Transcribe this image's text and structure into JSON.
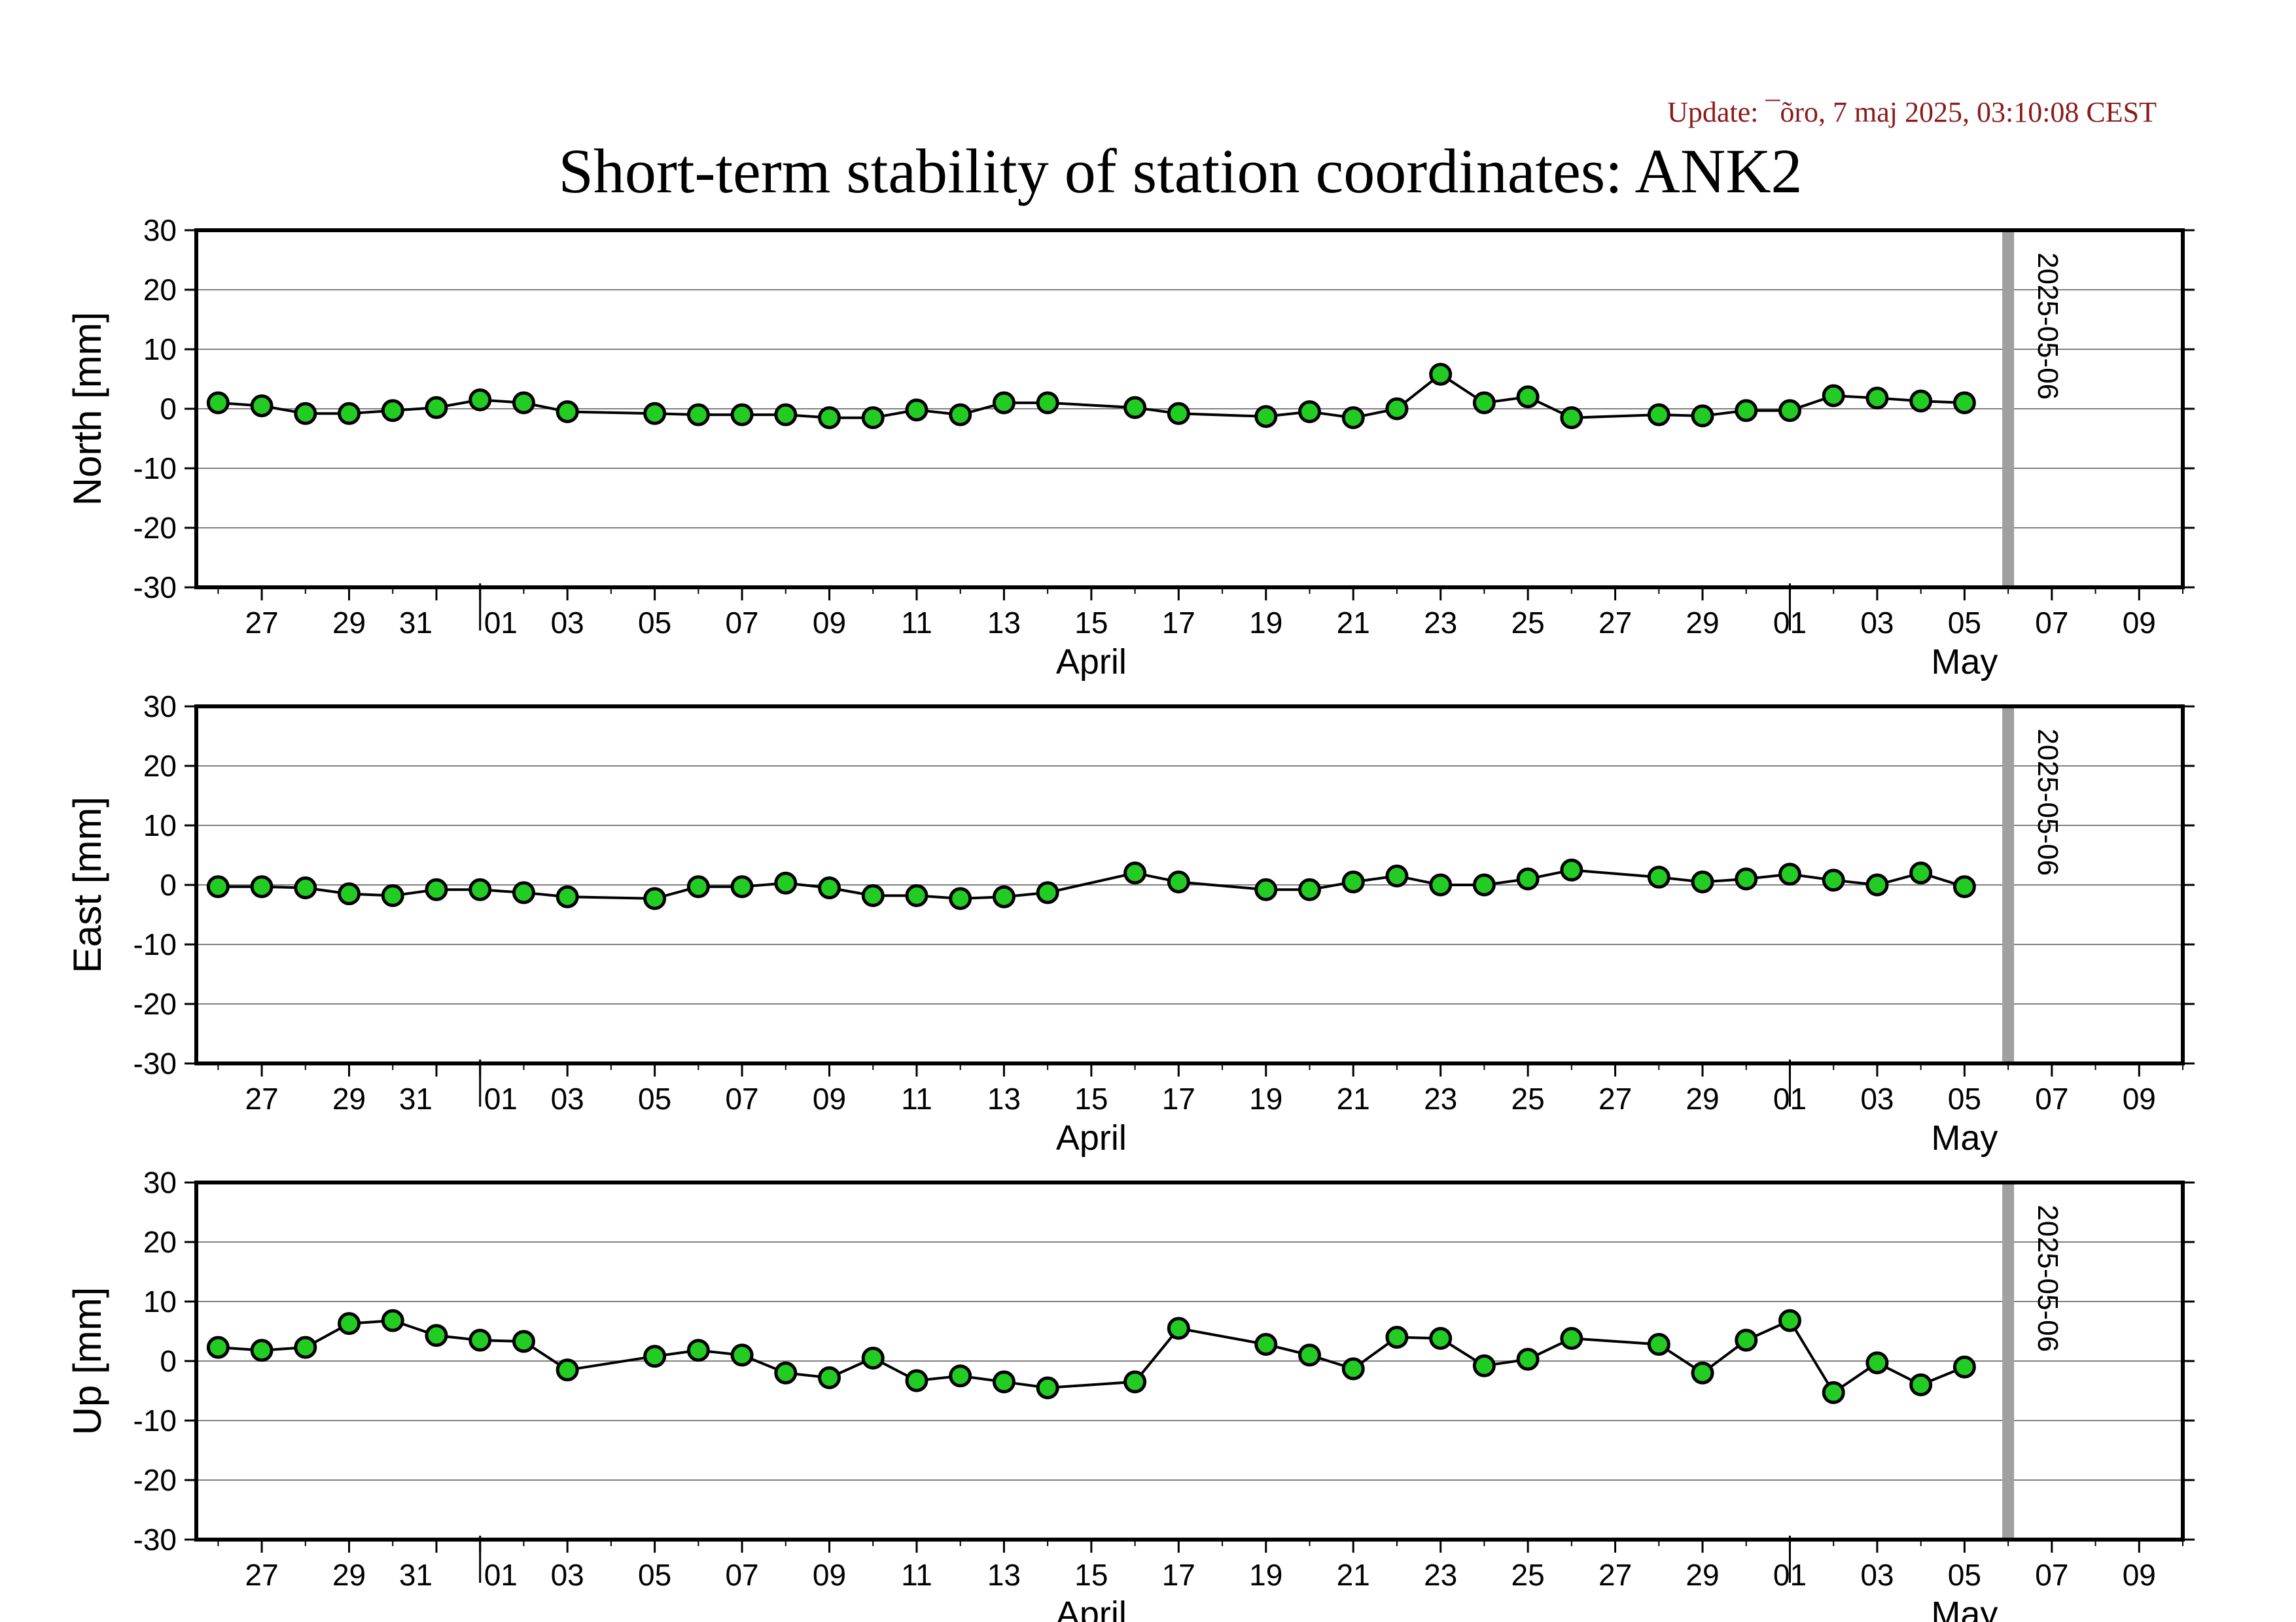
{
  "update_text": "Update: ¯õro, 7 maj 2025, 03:10:08 CEST",
  "chart_data": {
    "type": "scatter",
    "title": "Short-term stability of station coordinates: ANK2",
    "x_unit": "date",
    "xlim": [
      "2025-03-25T12:00",
      "2025-05-10T00:00"
    ],
    "ylim": [
      -30,
      30
    ],
    "y_ticks": [
      30,
      20,
      10,
      0,
      -10,
      -20,
      -30
    ],
    "x_tick_days": [
      "2025-03-27",
      "2025-03-29",
      "2025-03-31",
      "2025-04-01",
      "2025-04-03",
      "2025-04-05",
      "2025-04-07",
      "2025-04-09",
      "2025-04-11",
      "2025-04-13",
      "2025-04-15",
      "2025-04-17",
      "2025-04-19",
      "2025-04-21",
      "2025-04-23",
      "2025-04-25",
      "2025-04-27",
      "2025-04-29",
      "2025-05-01",
      "2025-05-03",
      "2025-05-05",
      "2025-05-07",
      "2025-05-09"
    ],
    "x_tick_labels": [
      "27",
      "29",
      "31",
      "01",
      "03",
      "05",
      "07",
      "09",
      "11",
      "13",
      "15",
      "17",
      "19",
      "21",
      "23",
      "25",
      "27",
      "29",
      "01",
      "03",
      "05",
      "07",
      "09"
    ],
    "month_labels": [
      {
        "text": "April",
        "date": "2025-04-15"
      },
      {
        "text": "May",
        "date": "2025-05-05"
      }
    ],
    "month_boundaries": [
      "2025-04-01",
      "2025-05-01"
    ],
    "marker_line": {
      "date": "2025-05-06",
      "label": "2025-05-06",
      "color": "#a0a0a0"
    },
    "colors": {
      "marker_fill": "#22cc22",
      "marker_edge": "#000000",
      "line": "#000000",
      "grid": "#808080"
    },
    "grid": true,
    "panels": [
      {
        "ylabel": "North [mm]",
        "points": [
          [
            "2025-03-26",
            1.0
          ],
          [
            "2025-03-27",
            0.5
          ],
          [
            "2025-03-28",
            -0.8
          ],
          [
            "2025-03-29",
            -0.8
          ],
          [
            "2025-03-30",
            -0.3
          ],
          [
            "2025-03-31",
            0.2
          ],
          [
            "2025-04-01",
            1.5
          ],
          [
            "2025-04-02",
            1.0
          ],
          [
            "2025-04-03",
            -0.5
          ],
          [
            "2025-04-05",
            -0.8
          ],
          [
            "2025-04-06",
            -1.0
          ],
          [
            "2025-04-07",
            -1.0
          ],
          [
            "2025-04-08",
            -1.0
          ],
          [
            "2025-04-09",
            -1.5
          ],
          [
            "2025-04-10",
            -1.5
          ],
          [
            "2025-04-11",
            -0.2
          ],
          [
            "2025-04-12",
            -1.0
          ],
          [
            "2025-04-13",
            1.0
          ],
          [
            "2025-04-14",
            1.0
          ],
          [
            "2025-04-16",
            0.2
          ],
          [
            "2025-04-17",
            -0.8
          ],
          [
            "2025-04-19",
            -1.3
          ],
          [
            "2025-04-20",
            -0.5
          ],
          [
            "2025-04-21",
            -1.5
          ],
          [
            "2025-04-22",
            0.0
          ],
          [
            "2025-04-23",
            5.8
          ],
          [
            "2025-04-24",
            1.0
          ],
          [
            "2025-04-25",
            2.0
          ],
          [
            "2025-04-26",
            -1.5
          ],
          [
            "2025-04-28",
            -1.0
          ],
          [
            "2025-04-29",
            -1.2
          ],
          [
            "2025-04-30",
            -0.3
          ],
          [
            "2025-05-01",
            -0.3
          ],
          [
            "2025-05-02",
            2.2
          ],
          [
            "2025-05-03",
            1.8
          ],
          [
            "2025-05-04",
            1.3
          ],
          [
            "2025-05-05",
            1.0
          ]
        ]
      },
      {
        "ylabel": "East [mm]",
        "points": [
          [
            "2025-03-26",
            -0.3
          ],
          [
            "2025-03-27",
            -0.3
          ],
          [
            "2025-03-28",
            -0.5
          ],
          [
            "2025-03-29",
            -1.5
          ],
          [
            "2025-03-30",
            -1.8
          ],
          [
            "2025-03-31",
            -0.8
          ],
          [
            "2025-04-01",
            -0.8
          ],
          [
            "2025-04-02",
            -1.3
          ],
          [
            "2025-04-03",
            -2.0
          ],
          [
            "2025-04-05",
            -2.3
          ],
          [
            "2025-04-06",
            -0.3
          ],
          [
            "2025-04-07",
            -0.3
          ],
          [
            "2025-04-08",
            0.3
          ],
          [
            "2025-04-09",
            -0.5
          ],
          [
            "2025-04-10",
            -1.8
          ],
          [
            "2025-04-11",
            -1.8
          ],
          [
            "2025-04-12",
            -2.3
          ],
          [
            "2025-04-13",
            -2.0
          ],
          [
            "2025-04-14",
            -1.3
          ],
          [
            "2025-04-16",
            2.0
          ],
          [
            "2025-04-17",
            0.5
          ],
          [
            "2025-04-19",
            -0.8
          ],
          [
            "2025-04-20",
            -0.8
          ],
          [
            "2025-04-21",
            0.5
          ],
          [
            "2025-04-22",
            1.5
          ],
          [
            "2025-04-23",
            0.0
          ],
          [
            "2025-04-24",
            0.0
          ],
          [
            "2025-04-25",
            1.0
          ],
          [
            "2025-04-26",
            2.5
          ],
          [
            "2025-04-28",
            1.3
          ],
          [
            "2025-04-29",
            0.5
          ],
          [
            "2025-04-30",
            1.0
          ],
          [
            "2025-05-01",
            1.8
          ],
          [
            "2025-05-02",
            0.8
          ],
          [
            "2025-05-03",
            0.0
          ],
          [
            "2025-05-04",
            2.0
          ],
          [
            "2025-05-05",
            -0.3
          ]
        ]
      },
      {
        "ylabel": "Up [mm]",
        "points": [
          [
            "2025-03-26",
            2.3
          ],
          [
            "2025-03-27",
            1.8
          ],
          [
            "2025-03-28",
            2.3
          ],
          [
            "2025-03-29",
            6.3
          ],
          [
            "2025-03-30",
            6.8
          ],
          [
            "2025-03-31",
            4.3
          ],
          [
            "2025-04-01",
            3.5
          ],
          [
            "2025-04-02",
            3.3
          ],
          [
            "2025-04-03",
            -1.5
          ],
          [
            "2025-04-05",
            0.8
          ],
          [
            "2025-04-06",
            1.8
          ],
          [
            "2025-04-07",
            1.0
          ],
          [
            "2025-04-08",
            -2.0
          ],
          [
            "2025-04-09",
            -2.8
          ],
          [
            "2025-04-10",
            0.5
          ],
          [
            "2025-04-11",
            -3.3
          ],
          [
            "2025-04-12",
            -2.5
          ],
          [
            "2025-04-13",
            -3.5
          ],
          [
            "2025-04-14",
            -4.5
          ],
          [
            "2025-04-16",
            -3.5
          ],
          [
            "2025-04-17",
            5.5
          ],
          [
            "2025-04-19",
            2.8
          ],
          [
            "2025-04-20",
            1.0
          ],
          [
            "2025-04-21",
            -1.3
          ],
          [
            "2025-04-22",
            4.0
          ],
          [
            "2025-04-23",
            3.8
          ],
          [
            "2025-04-24",
            -0.8
          ],
          [
            "2025-04-25",
            0.3
          ],
          [
            "2025-04-26",
            3.8
          ],
          [
            "2025-04-28",
            2.8
          ],
          [
            "2025-04-29",
            -2.0
          ],
          [
            "2025-04-30",
            3.5
          ],
          [
            "2025-05-01",
            6.8
          ],
          [
            "2025-05-02",
            -5.3
          ],
          [
            "2025-05-03",
            -0.3
          ],
          [
            "2025-05-04",
            -4.0
          ],
          [
            "2025-05-05",
            -1.0
          ]
        ]
      }
    ]
  }
}
